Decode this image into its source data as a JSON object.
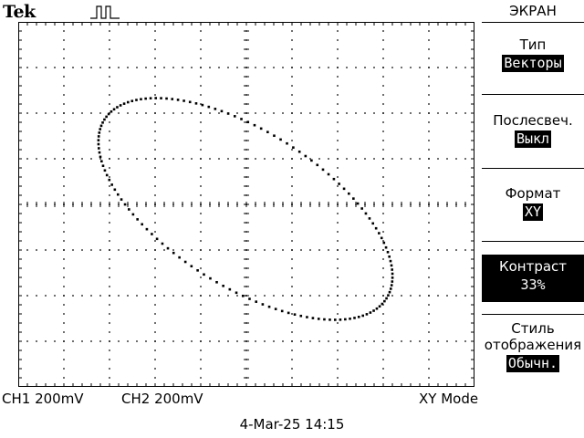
{
  "header": {
    "brand": "Tek"
  },
  "menu": {
    "title": "ЭКРАН",
    "items": [
      {
        "label": "Тип",
        "value": "Векторы"
      },
      {
        "label": "Послесвеч.",
        "value": "Выкл"
      },
      {
        "label": "Формат",
        "value": "XY"
      },
      {
        "label": "Контраст",
        "value": "33%",
        "active": true
      },
      {
        "label_lines": [
          "Стиль",
          "отображения"
        ],
        "value": "Обычн."
      }
    ]
  },
  "status": {
    "ch1": "CH1  200mV",
    "ch2": "CH2  200mV",
    "mode": "XY Mode"
  },
  "datetime": "4-Mar-25 14:15",
  "icons": {
    "trigger": "pulse-trigger-icon"
  }
}
